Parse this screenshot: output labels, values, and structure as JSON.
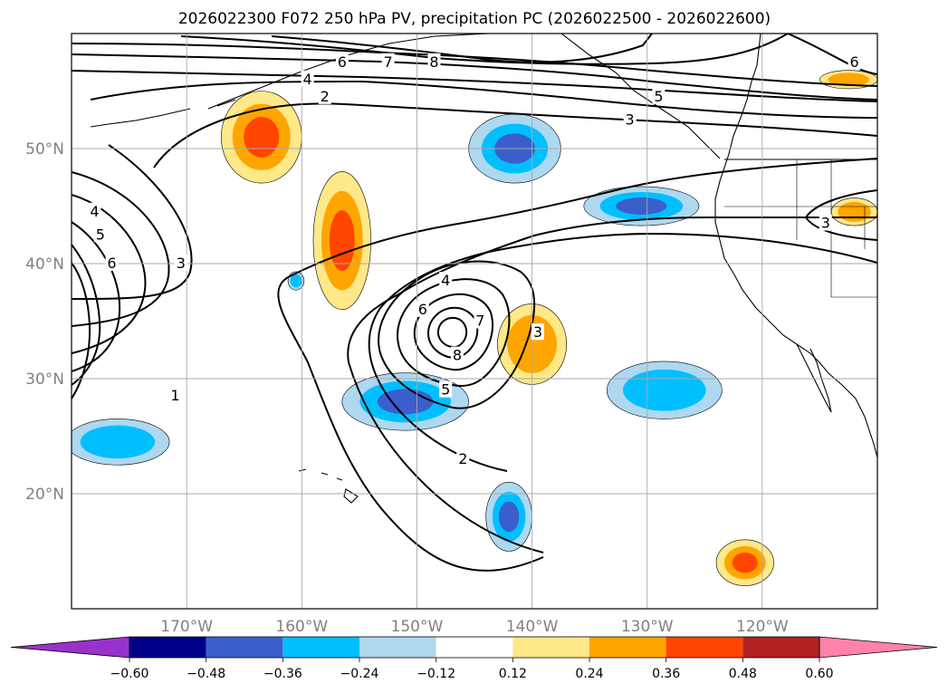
{
  "title": "2026022300 F072 250 hPa PV, precipitation PC (2026022500 - 2026022600)",
  "map": {
    "lon_range": [
      -180,
      -110
    ],
    "lat_range": [
      10,
      60
    ],
    "lat_labels": [
      "20°N",
      "30°N",
      "40°N",
      "50°N"
    ],
    "lat_values": [
      20,
      30,
      40,
      50
    ],
    "lon_labels": [
      "170°W",
      "160°W",
      "150°W",
      "140°W",
      "130°W",
      "120°W"
    ],
    "lon_values": [
      -170,
      -160,
      -150,
      -140,
      -130,
      -120
    ],
    "gridlines": true
  },
  "pv_contours": {
    "units": "PVU",
    "labels": [
      {
        "text": "1",
        "lon": -171,
        "lat": 28.5
      },
      {
        "text": "2",
        "lon": -146,
        "lat": 23
      },
      {
        "text": "2",
        "lon": -158,
        "lat": 54.5
      },
      {
        "text": "3",
        "lon": -170.5,
        "lat": 40
      },
      {
        "text": "3",
        "lon": -139.5,
        "lat": 34
      },
      {
        "text": "3",
        "lon": -131.5,
        "lat": 52.5
      },
      {
        "text": "3",
        "lon": -114.5,
        "lat": 43.5
      },
      {
        "text": "4",
        "lon": -178,
        "lat": 44.5
      },
      {
        "text": "4",
        "lon": -147.5,
        "lat": 38.5
      },
      {
        "text": "4",
        "lon": -159.5,
        "lat": 56
      },
      {
        "text": "5",
        "lon": -177.5,
        "lat": 42.5
      },
      {
        "text": "5",
        "lon": -147.5,
        "lat": 29
      },
      {
        "text": "5",
        "lon": -129,
        "lat": 54.5
      },
      {
        "text": "6",
        "lon": -176.5,
        "lat": 40
      },
      {
        "text": "6",
        "lon": -149.5,
        "lat": 36
      },
      {
        "text": "6",
        "lon": -156.5,
        "lat": 57.5
      },
      {
        "text": "6",
        "lon": -112,
        "lat": 57.5
      },
      {
        "text": "7",
        "lon": -144.5,
        "lat": 35
      },
      {
        "text": "7",
        "lon": -152.5,
        "lat": 57.5
      },
      {
        "text": "8",
        "lon": -146.5,
        "lat": 32
      },
      {
        "text": "8",
        "lon": -148.5,
        "lat": 57.5
      }
    ]
  },
  "precipitation_pc": {
    "colorbar": {
      "ticks": [
        -0.6,
        -0.48,
        -0.36,
        -0.24,
        -0.12,
        0.12,
        0.24,
        0.36,
        0.48,
        0.6
      ],
      "tick_labels": [
        "−0.60",
        "−0.48",
        "−0.36",
        "−0.24",
        "−0.12",
        "0.12",
        "0.24",
        "0.36",
        "0.48",
        "0.60"
      ],
      "colors": [
        "#9932cc",
        "#00008b",
        "#3a5fcd",
        "#00bfff",
        "#add8f0",
        "#ffffff",
        "#ffe888",
        "#ffa500",
        "#ff4500",
        "#b22222",
        "#ff82ab"
      ],
      "extend": "both"
    },
    "features": [
      {
        "lon": -163.5,
        "lat": 51,
        "rx": 3.5,
        "ry": 4,
        "value": 0.4,
        "sign": "positive"
      },
      {
        "lon": -156.5,
        "lat": 42,
        "rx": 2.5,
        "ry": 6,
        "value": 0.4,
        "sign": "positive"
      },
      {
        "lon": -140,
        "lat": 33,
        "rx": 3,
        "ry": 3.5,
        "value": 0.28,
        "sign": "positive"
      },
      {
        "lon": -112,
        "lat": 44.5,
        "rx": 2,
        "ry": 1.2,
        "value": 0.26,
        "sign": "positive"
      },
      {
        "lon": -112.5,
        "lat": 56,
        "rx": 2.5,
        "ry": 0.8,
        "value": 0.26,
        "sign": "positive"
      },
      {
        "lon": -121.5,
        "lat": 14,
        "rx": 2.5,
        "ry": 2,
        "value": 0.4,
        "sign": "positive"
      },
      {
        "lon": -141.5,
        "lat": 50,
        "rx": 4,
        "ry": 3,
        "value": -0.4,
        "sign": "negative"
      },
      {
        "lon": -130.5,
        "lat": 45,
        "rx": 5,
        "ry": 1.7,
        "value": -0.4,
        "sign": "negative"
      },
      {
        "lon": -151,
        "lat": 28,
        "rx": 5.5,
        "ry": 2.5,
        "value": -0.38,
        "sign": "negative"
      },
      {
        "lon": -142,
        "lat": 18,
        "rx": 2,
        "ry": 3,
        "value": -0.4,
        "sign": "negative"
      },
      {
        "lon": -128.5,
        "lat": 29,
        "rx": 5,
        "ry": 2.5,
        "value": -0.3,
        "sign": "negative"
      },
      {
        "lon": -176,
        "lat": 24.5,
        "rx": 4.5,
        "ry": 2,
        "value": -0.3,
        "sign": "negative"
      },
      {
        "lon": -160.5,
        "lat": 38.5,
        "rx": 0.7,
        "ry": 0.8,
        "value": -0.3,
        "sign": "negative"
      }
    ]
  }
}
